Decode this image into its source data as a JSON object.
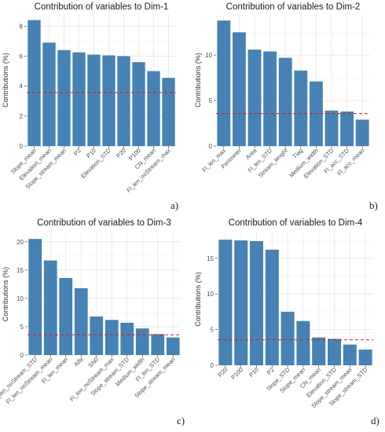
{
  "panels": [
    {
      "tag": "a)"
    },
    {
      "tag": "b)"
    },
    {
      "tag": "c)"
    },
    {
      "tag": "d)"
    }
  ],
  "chart_data": [
    {
      "type": "bar",
      "title": "Contribution of variables to Dim-1",
      "ylabel": "Contributions (%)",
      "categories": [
        "Slope_mean",
        "Elevation_mean",
        "Slope_stream_mean",
        "P2",
        "P10",
        "Elevation_STD",
        "P20",
        "P100",
        "CN_mean",
        "Fl_len_noStream_max"
      ],
      "values": [
        8.4,
        6.9,
        6.4,
        6.25,
        6.1,
        6.05,
        6.0,
        5.6,
        5.0,
        4.55
      ],
      "ylim": [
        0,
        8.8
      ],
      "yticks": [
        0,
        2,
        4,
        6,
        8
      ],
      "reference_line": 3.57,
      "bar_color": "#4682b4",
      "reference_color": "#e41a1c",
      "grid": true
    },
    {
      "type": "bar",
      "title": "Contribution of variables to Dim-2",
      "ylabel": "Contributions (%)",
      "categories": [
        "Fl_len_max",
        "Perimeter",
        "Area",
        "Fl_len_STD",
        "Stream_lenght",
        "Tlag",
        "Medium_width",
        "Elevation_STD",
        "Fl_acc_STD",
        "Fl_acc_mean"
      ],
      "values": [
        13.8,
        12.5,
        10.6,
        10.4,
        9.7,
        8.3,
        7.1,
        3.9,
        3.8,
        2.9
      ],
      "ylim": [
        0,
        14.5
      ],
      "yticks": [
        0,
        5,
        10
      ],
      "reference_line": 3.57,
      "bar_color": "#4682b4",
      "reference_color": "#e41a1c",
      "grid": true
    },
    {
      "type": "bar",
      "title": "Contribution of variables to Dim-3",
      "ylabel": "Contributions (%)",
      "categories": [
        "Fl_len_noStream_STD",
        "Fl_len_noStream_mean",
        "Fl_len_mean",
        "Alfa",
        "SN0",
        "Fl_len_noStream_max",
        "Slope_stream_STD",
        "Medium_width",
        "Fl_len_STD",
        "Slope_stream_mean"
      ],
      "values": [
        20.5,
        16.7,
        13.6,
        11.8,
        6.8,
        6.2,
        5.7,
        4.7,
        3.7,
        3.1
      ],
      "ylim": [
        0,
        21.5
      ],
      "yticks": [
        0,
        5,
        10,
        15,
        20
      ],
      "reference_line": 3.57,
      "bar_color": "#4682b4",
      "reference_color": "#e41a1c",
      "grid": true
    },
    {
      "type": "bar",
      "title": "Contribution of variables to Dim-4",
      "ylabel": "Contributions (%)",
      "categories": [
        "P20",
        "P100",
        "P10",
        "P2",
        "Slope_STD",
        "Slope_mean",
        "CN_mean",
        "Elevation_STD",
        "Slope_stream_mean",
        "Slope_stream_STD"
      ],
      "values": [
        17.6,
        17.5,
        17.4,
        16.2,
        7.5,
        6.2,
        3.9,
        3.7,
        2.9,
        2.2
      ],
      "ylim": [
        0,
        18.5
      ],
      "yticks": [
        0,
        5,
        10,
        15
      ],
      "reference_line": 3.57,
      "bar_color": "#4682b4",
      "reference_color": "#e41a1c",
      "grid": true
    }
  ]
}
